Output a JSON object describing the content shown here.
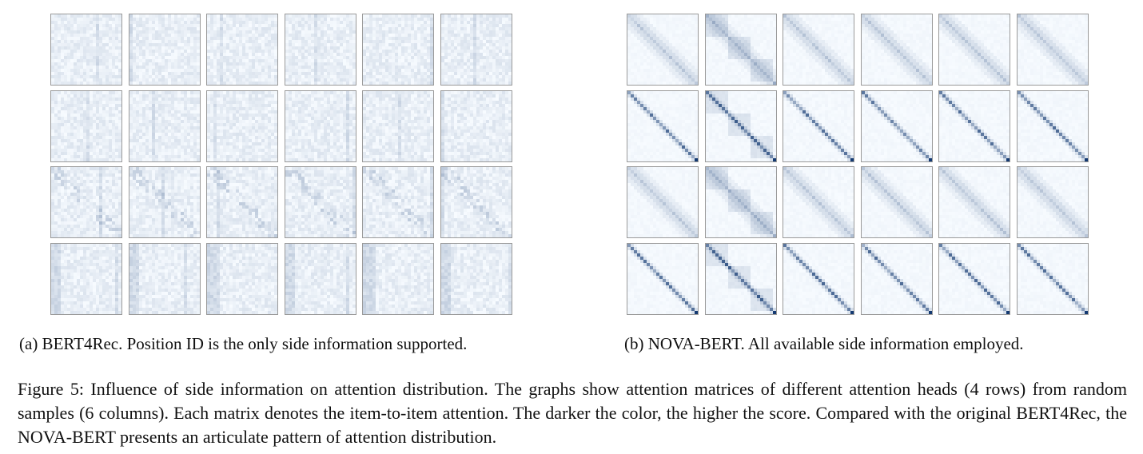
{
  "figure": {
    "panels": [
      {
        "id": "a",
        "caption": "(a) BERT4Rec. Position ID is the only side information supported.",
        "rows": 4,
        "cols": 6,
        "pattern": "diffuse"
      },
      {
        "id": "b",
        "caption": "(b) NOVA-BERT. All available side information employed.",
        "rows": 4,
        "cols": 6,
        "pattern": "diagonal"
      }
    ],
    "colormap": {
      "low": "#f7fbff",
      "high": "#08306b"
    },
    "caption": "Figure 5: Influence of side information on attention distribution. The graphs show attention matrices of different attention heads (4 rows) from random samples (6 columns). Each matrix denotes the item-to-item attention. The darker the color, the higher the score. Compared with the original BERT4Rec, the NOVA-BERT presents an articulate pattern of attention distribution."
  }
}
